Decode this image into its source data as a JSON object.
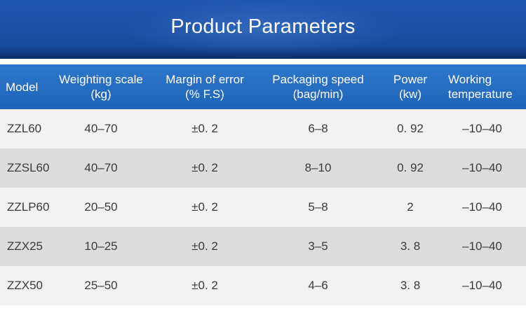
{
  "banner": {
    "title": "Product Parameters"
  },
  "table": {
    "headers": [
      [
        "Model",
        ""
      ],
      [
        "Weighting scale",
        "(kg)"
      ],
      [
        "Margin of error",
        "(% F.S)"
      ],
      [
        "Packaging speed",
        "(bag/min)"
      ],
      [
        "Power",
        "(kw)"
      ],
      [
        "Working",
        "temperature"
      ]
    ],
    "rows": [
      [
        "ZZL60",
        "40–70",
        "±0. 2",
        "6–8",
        "0. 92",
        "–10–40"
      ],
      [
        "ZZSL60",
        "40–70",
        "±0. 2",
        "8–10",
        "0. 92",
        "–10–40"
      ],
      [
        "ZZLP60",
        "20–50",
        "±0. 2",
        "5–8",
        "2",
        "–10–40"
      ],
      [
        "ZZX25",
        "10–25",
        "±0. 2",
        "3–5",
        "3. 8",
        "–10–40"
      ],
      [
        "ZZX50",
        "25–50",
        "±0. 2",
        "4–6",
        "3. 8",
        "–10–40"
      ]
    ]
  },
  "colors": {
    "banner": "#1b4da3",
    "header": "#2470c4",
    "row_light": "#f2f2f2",
    "row_dark": "#dcdcdc"
  }
}
